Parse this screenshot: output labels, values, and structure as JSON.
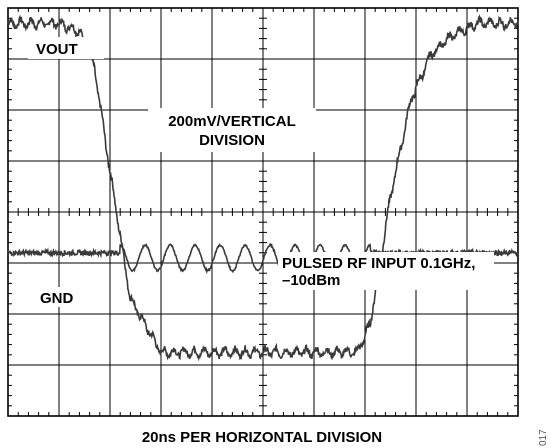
{
  "figure_code": "017",
  "chart_data": {
    "type": "line",
    "title": "",
    "xlabel": "20ns PER HORIZONTAL DIVISION",
    "ylabel": "",
    "x_divisions": 10,
    "y_divisions": 8,
    "grid": true,
    "annotations": {
      "vertical_scale": [
        "200mV/VERTICAL",
        "DIVISION"
      ],
      "input": [
        "PULSED RF INPUT 0.1GHz,",
        "–10dBm"
      ]
    },
    "series": [
      {
        "name": "VOUT",
        "x_div": [
          0,
          1.0,
          1.4,
          1.7,
          2.0,
          2.4,
          3.0,
          4.0,
          5.0,
          6.0,
          6.85,
          7.1,
          7.5,
          7.9,
          8.3,
          8.7,
          9.2,
          9.6,
          10.0
        ],
        "y_div": [
          7.7,
          7.7,
          7.55,
          6.8,
          4.8,
          2.3,
          1.25,
          1.25,
          1.25,
          1.25,
          1.25,
          1.8,
          4.3,
          6.2,
          7.1,
          7.45,
          7.7,
          7.7,
          7.7
        ],
        "ripple_div": 0.15,
        "ripple_period_div": 0.2
      },
      {
        "name": "GND",
        "baseline_div": 3.2,
        "burst_start_div": 2.2,
        "burst_end_div": 7.1,
        "burst_cycles": 10,
        "burst_amplitude_div": 0.5,
        "noise_div": 0.05
      }
    ]
  }
}
